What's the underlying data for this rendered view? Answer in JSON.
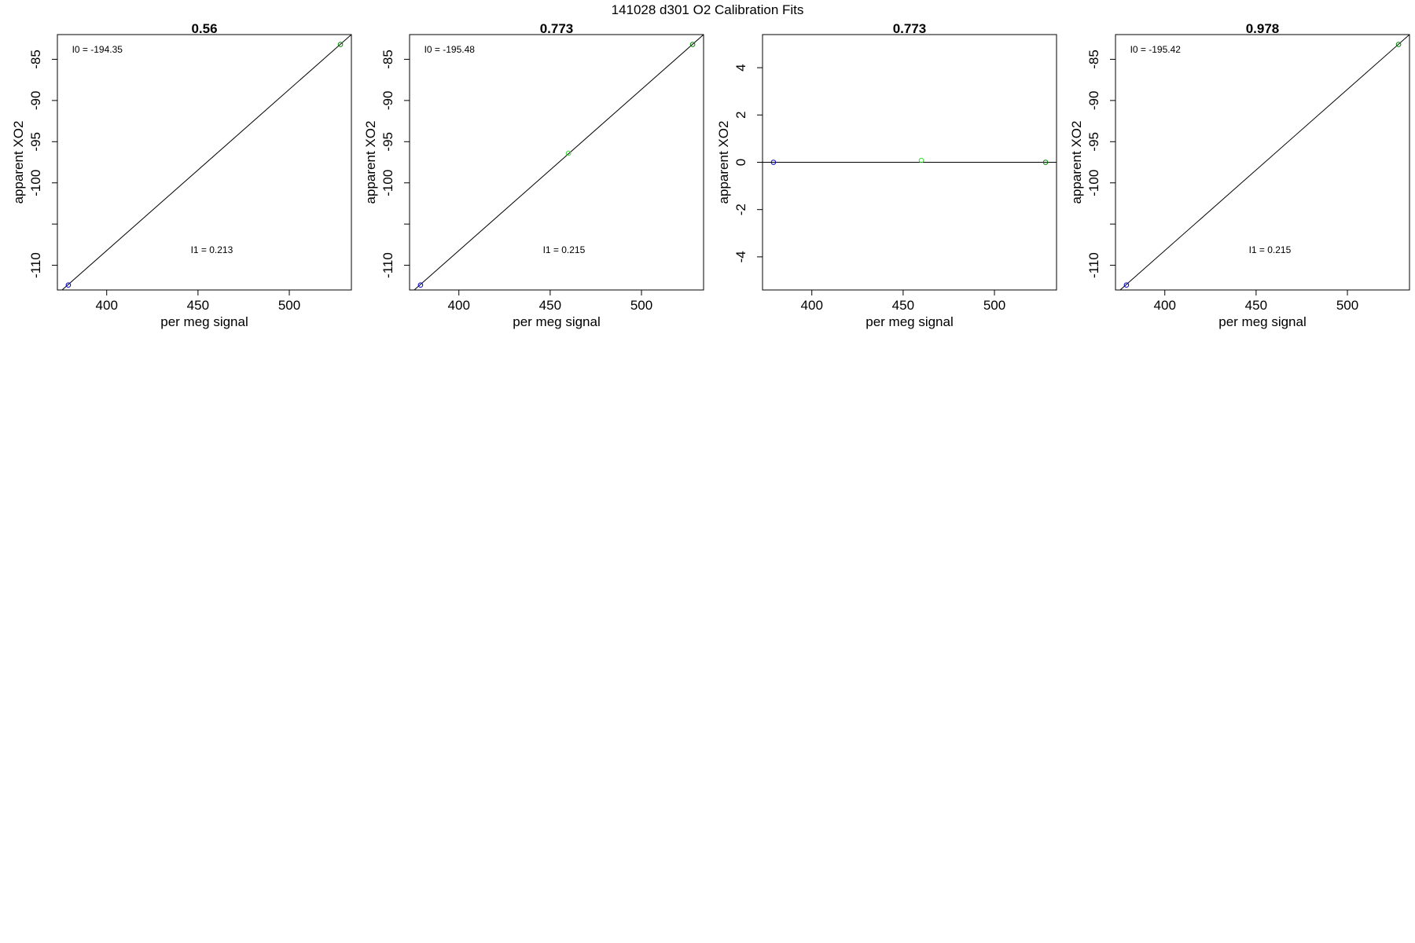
{
  "figure": {
    "title": "141028   d301   O2 Calibration Fits"
  },
  "chart_data": [
    {
      "type": "scatter",
      "title": "0.56",
      "xlabel": "per meg signal",
      "ylabel": "apparent XO2",
      "xlim": [
        373,
        534
      ],
      "ylim": [
        -113,
        -82
      ],
      "xticks": [
        400,
        450,
        500
      ],
      "yticks": [
        -85,
        -90,
        -95,
        -100,
        -110
      ],
      "ytick_marks": [
        -85,
        -90,
        -95,
        -100,
        -105,
        -110
      ],
      "fit_line": {
        "x": [
          373,
          534
        ],
        "y": [
          -113.5,
          -82.0
        ]
      },
      "points": [
        {
          "x": 379,
          "y": -112.4,
          "color": "#0000cc"
        },
        {
          "x": 528,
          "y": -83.2,
          "color": "#008000"
        }
      ],
      "annotations": [
        {
          "id": "i0",
          "text": "I0 =  -194.35",
          "at_x": 381,
          "at_y": -84.2
        },
        {
          "id": "i1",
          "text": "I1 =  0.213",
          "at_x": 446,
          "at_y": -108.5
        }
      ],
      "grid": false,
      "color": {
        "line": "#000000"
      }
    },
    {
      "type": "scatter",
      "title": "0.773",
      "xlabel": "per meg signal",
      "ylabel": "apparent XO2",
      "xlim": [
        373,
        534
      ],
      "ylim": [
        -113,
        -82
      ],
      "xticks": [
        400,
        450,
        500
      ],
      "yticks": [
        -85,
        -90,
        -95,
        -100,
        -110
      ],
      "ytick_marks": [
        -85,
        -90,
        -95,
        -100,
        -105,
        -110
      ],
      "fit_line": {
        "x": [
          373,
          534
        ],
        "y": [
          -113.5,
          -82.0
        ]
      },
      "points": [
        {
          "x": 379,
          "y": -112.4,
          "color": "#0000cc"
        },
        {
          "x": 460,
          "y": -96.4,
          "color": "#33dd33"
        },
        {
          "x": 528,
          "y": -83.2,
          "color": "#008000"
        }
      ],
      "annotations": [
        {
          "id": "i0",
          "text": "I0 =  -195.48",
          "at_x": 381,
          "at_y": -84.2
        },
        {
          "id": "i1",
          "text": "I1 =  0.215",
          "at_x": 446,
          "at_y": -108.5
        }
      ],
      "grid": false,
      "color": {
        "line": "#000000"
      }
    },
    {
      "type": "scatter",
      "title": "0.773",
      "xlabel": "per meg signal",
      "ylabel": "apparent XO2",
      "xlim": [
        373,
        534
      ],
      "ylim": [
        -5.4,
        5.4
      ],
      "xticks": [
        400,
        450,
        500
      ],
      "yticks": [
        4,
        2,
        0,
        -2,
        -4
      ],
      "ytick_marks": [
        4,
        2,
        0,
        -2,
        -4
      ],
      "fit_line": {
        "x": [
          373,
          534
        ],
        "y": [
          0,
          0
        ]
      },
      "points": [
        {
          "x": 379,
          "y": 0,
          "color": "#0000cc"
        },
        {
          "x": 460,
          "y": 0.08,
          "color": "#33dd33"
        },
        {
          "x": 528,
          "y": 0,
          "color": "#008000"
        }
      ],
      "annotations": [],
      "grid": false,
      "color": {
        "line": "#000000"
      }
    },
    {
      "type": "scatter",
      "title": "0.978",
      "xlabel": "per meg signal",
      "ylabel": "apparent XO2",
      "xlim": [
        373,
        534
      ],
      "ylim": [
        -113,
        -82
      ],
      "xticks": [
        400,
        450,
        500
      ],
      "yticks": [
        -85,
        -90,
        -95,
        -100,
        -110
      ],
      "ytick_marks": [
        -85,
        -90,
        -95,
        -100,
        -105,
        -110
      ],
      "fit_line": {
        "x": [
          373,
          534
        ],
        "y": [
          -113.5,
          -82.0
        ]
      },
      "points": [
        {
          "x": 379,
          "y": -112.4,
          "color": "#0000cc"
        },
        {
          "x": 528,
          "y": -83.2,
          "color": "#008000"
        }
      ],
      "annotations": [
        {
          "id": "i0",
          "text": "I0 =  -195.42",
          "at_x": 381,
          "at_y": -84.2
        },
        {
          "id": "i1",
          "text": "I1 =  0.215",
          "at_x": 446,
          "at_y": -108.5
        }
      ],
      "grid": false,
      "color": {
        "line": "#000000"
      }
    }
  ]
}
